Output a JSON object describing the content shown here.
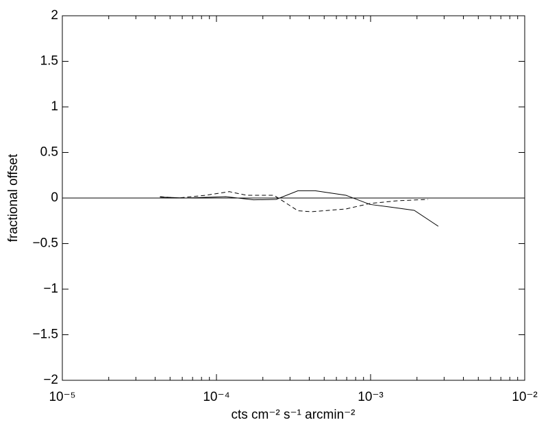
{
  "chart_data": {
    "type": "line",
    "xlabel": "cts cm⁻² s⁻¹ arcmin⁻²",
    "ylabel": "fractional offset",
    "xscale": "log",
    "xlim": [
      1e-05,
      0.01
    ],
    "ylim": [
      -2,
      2
    ],
    "xticks": [
      {
        "value": 1e-05,
        "label": "10⁻⁵"
      },
      {
        "value": 0.0001,
        "label": "10⁻⁴"
      },
      {
        "value": 0.001,
        "label": "10⁻³"
      },
      {
        "value": 0.01,
        "label": "10⁻²"
      }
    ],
    "xminorticks": [
      2e-05,
      3e-05,
      4e-05,
      5e-05,
      6e-05,
      7e-05,
      8e-05,
      9e-05,
      0.0002,
      0.0003,
      0.0004,
      0.0005,
      0.0006,
      0.0007,
      0.0008,
      0.0009,
      0.002,
      0.003,
      0.004,
      0.005,
      0.006,
      0.007,
      0.008,
      0.009
    ],
    "yticks": [
      {
        "value": -2,
        "label": "−2"
      },
      {
        "value": -1.5,
        "label": "−1.5"
      },
      {
        "value": -1,
        "label": "−1"
      },
      {
        "value": -0.5,
        "label": "−0.5"
      },
      0,
      0.5,
      1,
      1.5,
      2
    ],
    "reference_line": 0,
    "series": [
      {
        "color": "#000000",
        "dash": "solid",
        "x": [
          4.3e-05,
          6.3e-05,
          0.000115,
          0.000174,
          0.000244,
          0.000338,
          0.000437,
          0.000692,
          0.00099,
          0.00135,
          0.00192,
          0.00275
        ],
        "values": [
          0.01,
          0,
          0.015,
          -0.02,
          -0.015,
          0.08,
          0.08,
          0.03,
          -0.07,
          -0.1,
          -0.135,
          -0.31
        ]
      },
      {
        "color": "#000000",
        "dash": "dashed",
        "x": [
          4.3e-05,
          5.6e-05,
          8.5e-05,
          0.000121,
          0.000157,
          0.000236,
          0.000338,
          0.000415,
          0.000692,
          0.00099,
          0.00149,
          0.00236
        ],
        "values": [
          0.015,
          0,
          0.03,
          0.07,
          0.03,
          0.03,
          -0.14,
          -0.15,
          -0.12,
          -0.06,
          -0.03,
          -0.015
        ]
      }
    ]
  }
}
